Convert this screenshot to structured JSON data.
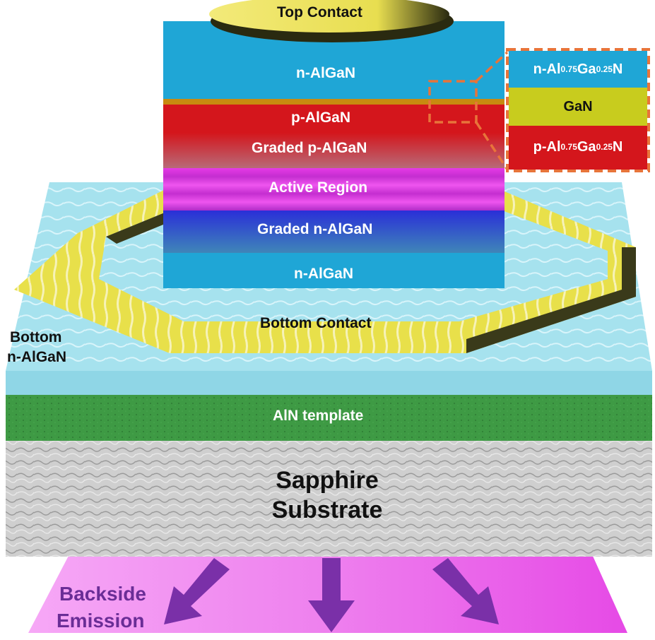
{
  "labels": {
    "top_contact": "Top Contact",
    "n_algan_top": "n-AlGaN",
    "p_algan": "p-AlGaN",
    "graded_p": "Graded p-AlGaN",
    "active": "Active Region",
    "graded_n": "Graded n-AlGaN",
    "n_algan_bottom": "n-AlGaN",
    "bottom_contact": "Bottom Contact",
    "bottom_nalgan_line1": "Bottom",
    "bottom_nalgan_line2": "n-AlGaN",
    "aln": "AlN template",
    "sapphire_line1": "Sapphire",
    "sapphire_line2": "Substrate",
    "emission_line1": "Backside",
    "emission_line2": "Emission"
  },
  "inset": {
    "top": {
      "prefix": "n-Al",
      "sub1": "0.75",
      "mid": "Ga",
      "sub2": "0.25",
      "suffix": "N"
    },
    "middle": "GaN",
    "bottom": {
      "prefix": "p-Al",
      "sub1": "0.75",
      "mid": "Ga",
      "sub2": "0.25",
      "suffix": "N"
    }
  },
  "colors": {
    "n_algan": "#1fa6d6",
    "p_algan": "#d4161c",
    "active": "#e62ee6",
    "graded_n": "#3a40d0",
    "contact": "#e8e04a",
    "aln": "#3e9a44",
    "sapphire": "#c9c9c9",
    "emission": "#ee70ee",
    "arrow": "#7a30a8",
    "inset_border": "#e8743a",
    "gan": "#c8cc1e"
  }
}
